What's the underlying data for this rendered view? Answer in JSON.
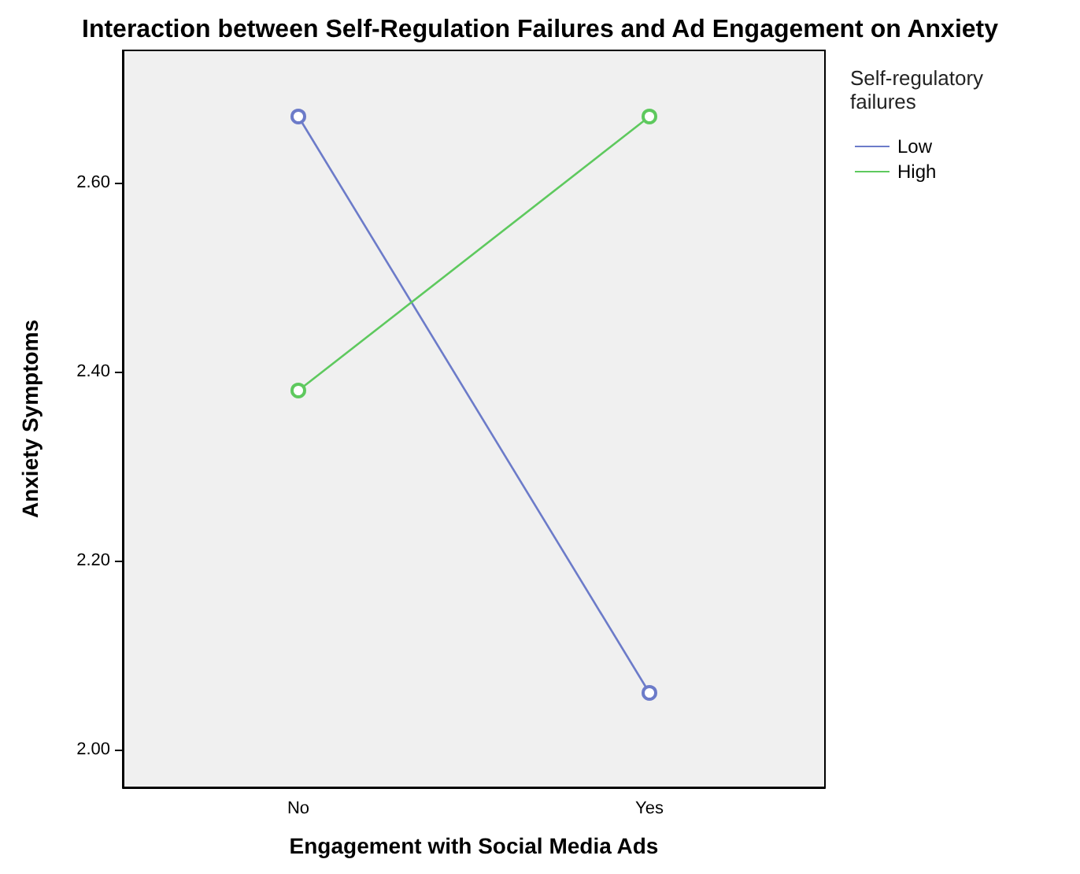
{
  "chart_data": {
    "type": "line",
    "title": "Interaction between Self-Regulation Failures and Ad Engagement on Anxiety",
    "xlabel": "Engagement with Social Media Ads",
    "ylabel": "Anxiety Symptoms",
    "legend_title": "Self-regulatory failures",
    "categories": [
      "No",
      "Yes"
    ],
    "series": [
      {
        "name": "Low",
        "color": "#6c7bc9",
        "values": [
          2.67,
          2.06
        ]
      },
      {
        "name": "High",
        "color": "#5ec95e",
        "values": [
          2.38,
          2.67
        ]
      }
    ],
    "ylim": [
      1.96,
      2.74
    ],
    "yticks": [
      {
        "value": 2,
        "label": "2.00"
      },
      {
        "value": 2.2,
        "label": "2.20"
      },
      {
        "value": 2.4,
        "label": "2.40"
      },
      {
        "value": 2.6,
        "label": "2.60"
      }
    ],
    "grid": false,
    "legend": "top right",
    "marker": "circle",
    "line_style": "solid"
  }
}
